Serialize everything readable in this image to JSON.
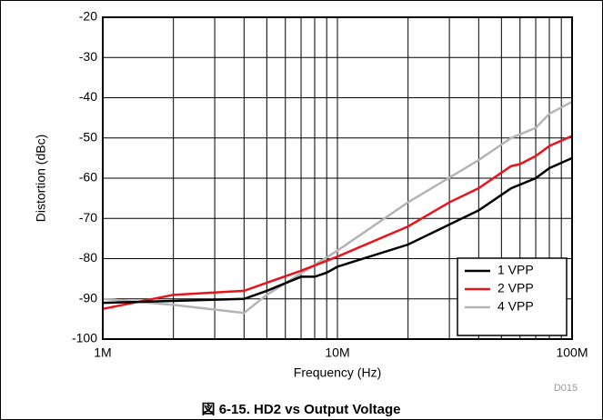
{
  "chart_data": {
    "type": "line",
    "title": "図 6-15. HD2 vs Output Voltage",
    "code": "D015",
    "xlabel": "Frequency (Hz)",
    "ylabel": "Distortion (dBc)",
    "xscale": "log",
    "xlim": [
      1000000,
      100000000
    ],
    "xticks": [
      {
        "value": 1000000,
        "label": "1M"
      },
      {
        "value": 10000000,
        "label": "10M"
      },
      {
        "value": 100000000,
        "label": "100M"
      }
    ],
    "xminorticks": [
      2000000,
      3000000,
      4000000,
      5000000,
      6000000,
      7000000,
      8000000,
      9000000,
      20000000,
      30000000,
      40000000,
      50000000,
      60000000,
      70000000,
      80000000,
      90000000
    ],
    "ylim": [
      -100,
      -20
    ],
    "yticks": [
      -100,
      -90,
      -80,
      -70,
      -60,
      -50,
      -40,
      -30,
      -20
    ],
    "grid": true,
    "legend": "lower right",
    "series": [
      {
        "name": "1 VPP",
        "color": "#000000",
        "x": [
          1000000,
          2000000,
          4000000,
          5000000,
          7000000,
          8000000,
          9000000,
          10000000,
          20000000,
          40000000,
          55000000,
          70000000,
          80000000,
          100000000
        ],
        "values": [
          -91,
          -90.5,
          -90,
          -88,
          -84.5,
          -84.5,
          -83.5,
          -82,
          -76.5,
          -68,
          -62.5,
          -60,
          -57.5,
          -55
        ]
      },
      {
        "name": "2 VPP",
        "color": "#e8141c",
        "x": [
          1000000,
          2000000,
          4000000,
          5000000,
          7000000,
          10000000,
          20000000,
          30000000,
          40000000,
          55000000,
          60000000,
          70000000,
          80000000,
          100000000
        ],
        "values": [
          -92.5,
          -89,
          -88,
          -86,
          -83,
          -79.5,
          -72,
          -66,
          -62.5,
          -57,
          -56.5,
          -54.5,
          -52,
          -49.5
        ]
      },
      {
        "name": "4 VPP",
        "color": "#b4b4b4",
        "x": [
          1000000,
          2000000,
          4000000,
          5000000,
          10000000,
          20000000,
          40000000,
          55000000,
          70000000,
          80000000,
          100000000
        ],
        "values": [
          -90,
          -91.5,
          -93.5,
          -89,
          -78,
          -66,
          -55.5,
          -50,
          -47.5,
          -44,
          -41
        ]
      }
    ]
  }
}
